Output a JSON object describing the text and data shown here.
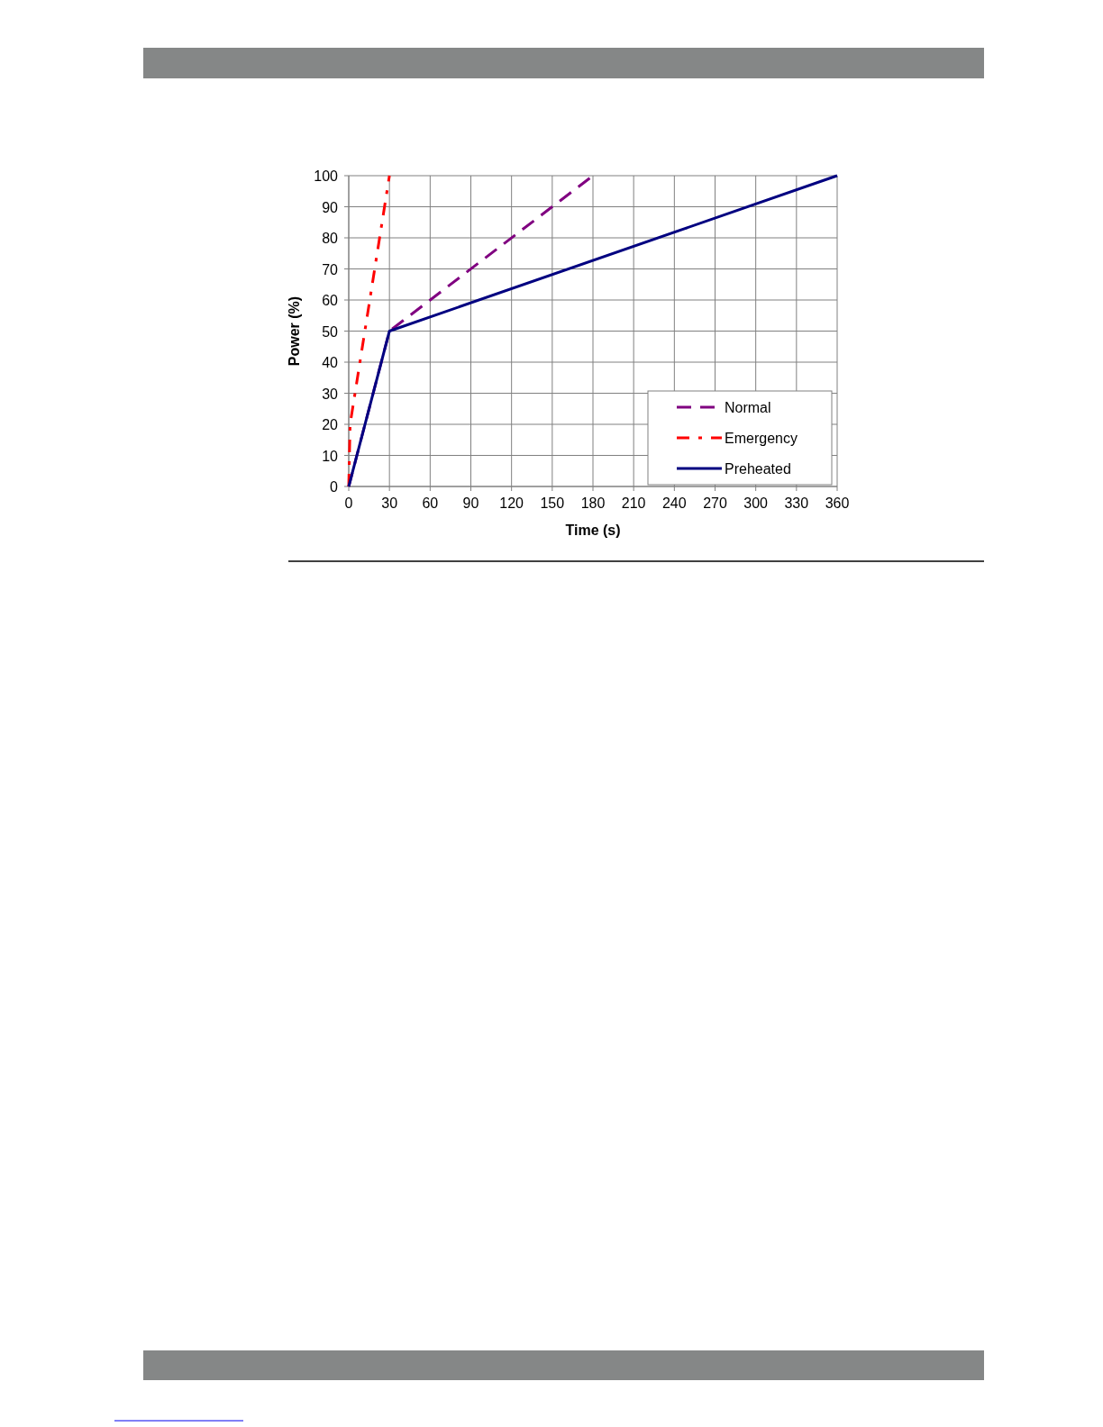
{
  "chart_data": {
    "type": "line",
    "xlabel": "Time (s)",
    "ylabel": "Power (%)",
    "xlim": [
      0,
      360
    ],
    "xticks": [
      0,
      30,
      60,
      90,
      120,
      150,
      180,
      210,
      240,
      270,
      300,
      330,
      360
    ],
    "ylim": [
      0,
      100
    ],
    "yticks": [
      0,
      10,
      20,
      30,
      40,
      50,
      60,
      70,
      80,
      90,
      100
    ],
    "grid": true,
    "legend": "bottom right",
    "marker": "none",
    "series": [
      {
        "name": "Normal",
        "color": "#800080",
        "x": [
          0,
          30,
          180
        ],
        "values": [
          0,
          50,
          100
        ],
        "line_style": "dashed"
      },
      {
        "name": "Emergency",
        "color": "#ff0000",
        "x": [
          0,
          1,
          30
        ],
        "values": [
          0,
          20,
          100
        ],
        "line_style": "dashed"
      },
      {
        "name": "Preheated",
        "color": "#000080",
        "x": [
          0,
          30,
          360
        ],
        "values": [
          0,
          50,
          100
        ],
        "line_style": "solid"
      }
    ]
  }
}
